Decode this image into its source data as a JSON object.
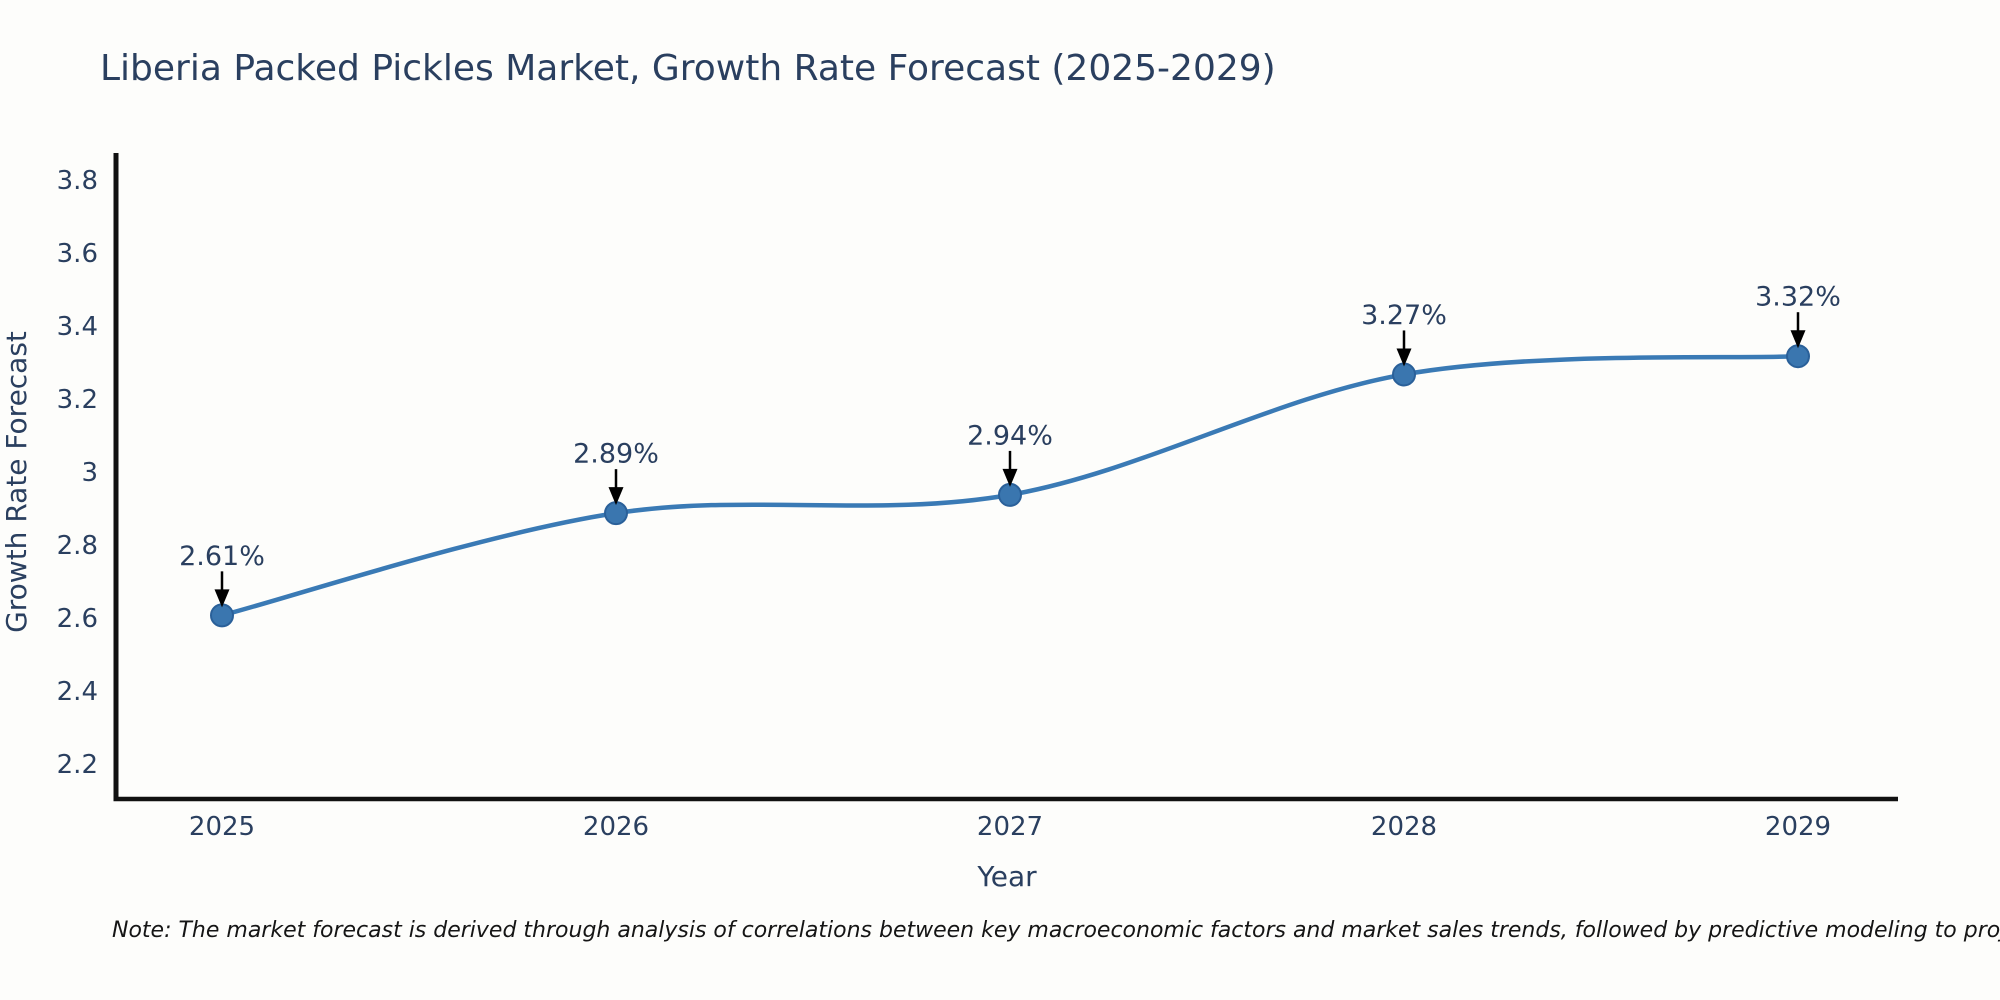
{
  "title": "Liberia Packed Pickles Market, Growth Rate Forecast (2025-2029)",
  "note": "Note: The market forecast is derived through analysis of correlations between key macroeconomic factors and market sales trends, followed by predictive modeling to project future sales",
  "chart_data": {
    "type": "line",
    "title": "Liberia Packed Pickles Market, Growth Rate Forecast (2025-2029)",
    "xlabel": "Year",
    "ylabel": "Growth Rate Forecast",
    "x": [
      2025,
      2026,
      2027,
      2028,
      2029
    ],
    "y": [
      2.61,
      2.89,
      2.94,
      3.27,
      3.32
    ],
    "point_labels": [
      "2.61%",
      "2.89%",
      "2.94%",
      "3.27%",
      "3.32%"
    ],
    "x_tick_labels": [
      "2025",
      "2026",
      "2027",
      "2028",
      "2029"
    ],
    "y_ticks": [
      2.2,
      2.4,
      2.6,
      2.8,
      3.0,
      3.2,
      3.4,
      3.6,
      3.8
    ],
    "y_tick_labels": [
      "2.2",
      "2.4",
      "2.6",
      "2.8",
      "3",
      "3.2",
      "3.4",
      "3.6",
      "3.8"
    ],
    "xlim": [
      2024.73,
      2029.25
    ],
    "ylim": [
      2.11,
      3.88
    ],
    "line_shape": "spline",
    "grid": false,
    "legend_position": "none",
    "colors": {
      "line": "#3a7ab5",
      "marker_fill": "#3a76af",
      "marker_edge": "#2a6099",
      "axis_line": "#111111",
      "text": "#2a3f5f",
      "arrow": "#000000",
      "background": "#fdfdfb"
    }
  }
}
